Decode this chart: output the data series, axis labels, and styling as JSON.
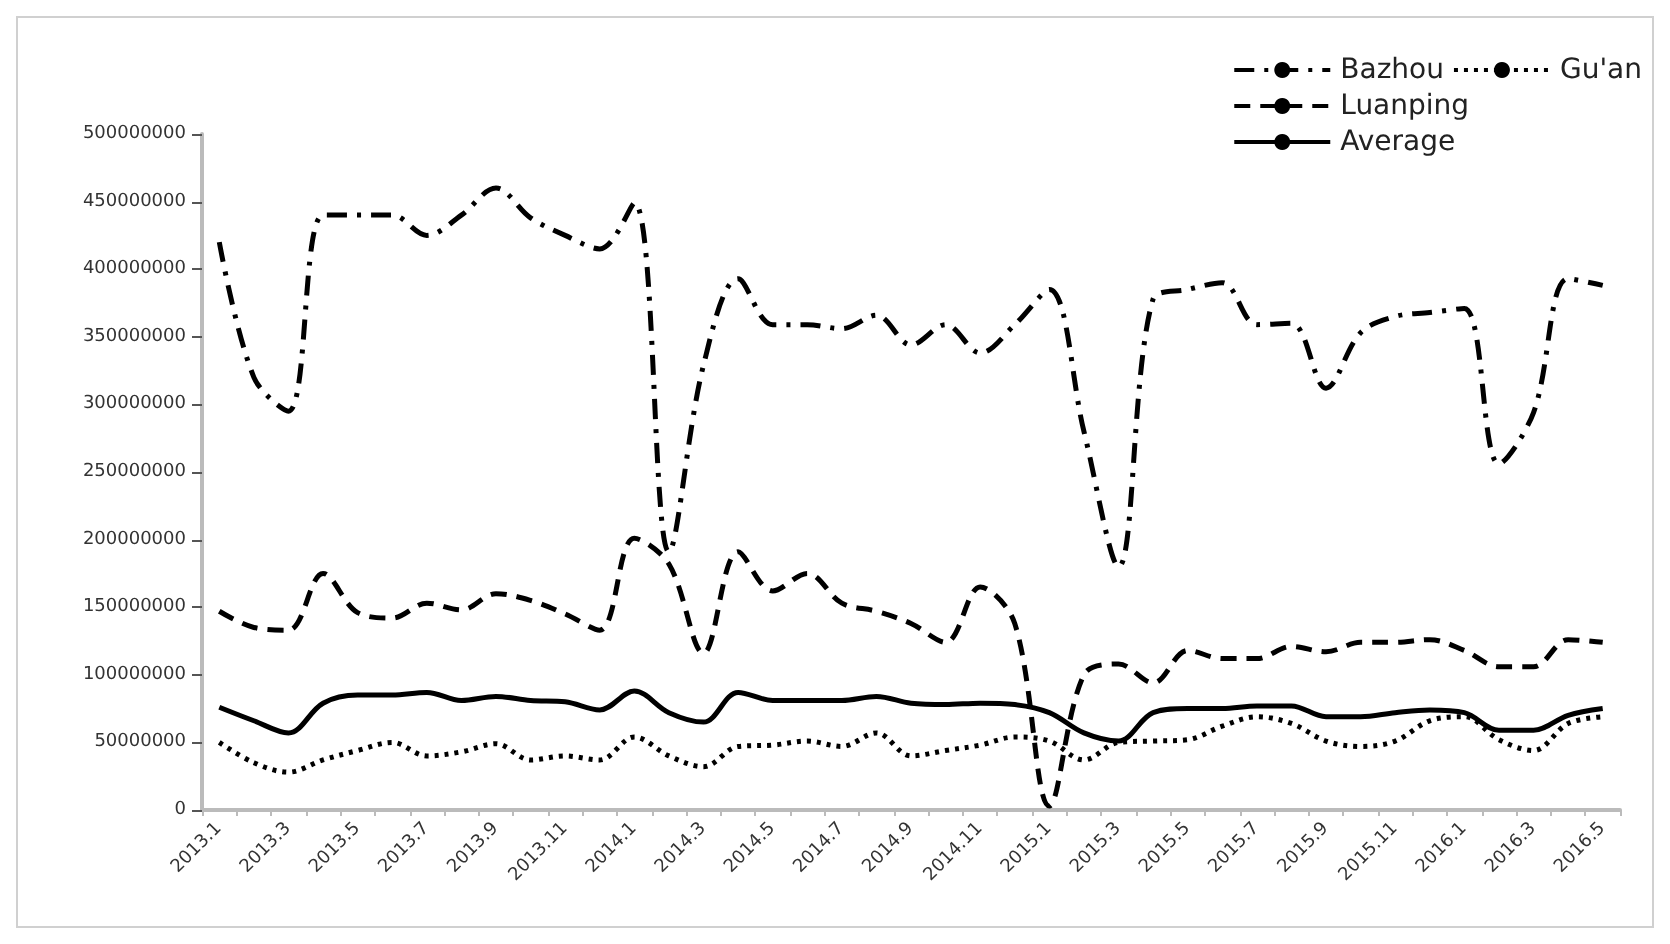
{
  "chart_data": {
    "type": "line",
    "categories": [
      "2013.1",
      null,
      "2013.3",
      null,
      "2013.5",
      null,
      "2013.7",
      null,
      "2013.9",
      null,
      "2013.11",
      null,
      "2014.1",
      null,
      "2014.3",
      null,
      "2014.5",
      null,
      "2014.7",
      null,
      "2014.9",
      null,
      "2014.11",
      null,
      "2015.1",
      null,
      "2015.3",
      null,
      "2015.5",
      null,
      "2015.7",
      null,
      "2015.9",
      null,
      "2015.11",
      null,
      "2016.1",
      null,
      "2016.3",
      null,
      "2016.5"
    ],
    "series": [
      {
        "name": "Bazhou",
        "color": "#000000",
        "line_style": "dashdot",
        "values": [
          420000000,
          320000000,
          295000000,
          440000000,
          440000000,
          440000000,
          425000000,
          440000000,
          460000000,
          438000000,
          425000000,
          415000000,
          449000000,
          191000000,
          329000000,
          393000000,
          359000000,
          359000000,
          356000000,
          366000000,
          344000000,
          359000000,
          338000000,
          359000000,
          385000000,
          280000000,
          180000000,
          378000000,
          385000000,
          390000000,
          359000000,
          360000000,
          312000000,
          353000000,
          365000000,
          368000000,
          371000000,
          256000000,
          294000000,
          393000000,
          388000000
        ]
      },
      {
        "name": "Gu'an",
        "color": "#000000",
        "line_style": "dotted",
        "values": [
          50000000,
          35000000,
          28000000,
          37000000,
          44000000,
          50000000,
          40000000,
          43000000,
          49000000,
          37000000,
          40000000,
          37000000,
          54000000,
          40000000,
          32000000,
          47000000,
          48000000,
          51000000,
          47000000,
          57000000,
          40000000,
          44000000,
          48000000,
          54000000,
          51000000,
          37000000,
          50000000,
          51000000,
          52000000,
          62000000,
          69000000,
          64000000,
          51000000,
          47000000,
          51000000,
          66000000,
          69000000,
          52000000,
          44000000,
          64000000,
          69000000
        ]
      },
      {
        "name": "Luanping",
        "color": "#000000",
        "line_style": "dashed",
        "values": [
          147000000,
          135000000,
          133000000,
          175000000,
          146000000,
          142000000,
          153000000,
          148000000,
          160000000,
          155000000,
          145000000,
          133000000,
          201000000,
          182000000,
          116000000,
          191000000,
          162000000,
          175000000,
          153000000,
          147000000,
          138000000,
          124000000,
          165000000,
          138000000,
          3000000,
          100000000,
          108000000,
          94000000,
          118000000,
          112000000,
          112000000,
          121000000,
          117000000,
          124000000,
          124000000,
          126000000,
          118000000,
          106000000,
          106000000,
          126000000,
          124000000
        ]
      },
      {
        "name": "Average",
        "color": "#000000",
        "line_style": "solid",
        "values": [
          76000000,
          66000000,
          57000000,
          79000000,
          85000000,
          85000000,
          87000000,
          81000000,
          84000000,
          81000000,
          80000000,
          74000000,
          88000000,
          72000000,
          65000000,
          87000000,
          81000000,
          81000000,
          81000000,
          84000000,
          79000000,
          78000000,
          79000000,
          78000000,
          72000000,
          57000000,
          51000000,
          72000000,
          75000000,
          75000000,
          77000000,
          77000000,
          69000000,
          69000000,
          72000000,
          74000000,
          72000000,
          59000000,
          59000000,
          70000000,
          75000000
        ]
      }
    ],
    "ylim": [
      0,
      500000000
    ],
    "yticks": [
      0,
      50000000,
      100000000,
      150000000,
      200000000,
      250000000,
      300000000,
      350000000,
      400000000,
      450000000,
      500000000
    ],
    "grid": false,
    "legend": "top right",
    "marker": "none"
  }
}
